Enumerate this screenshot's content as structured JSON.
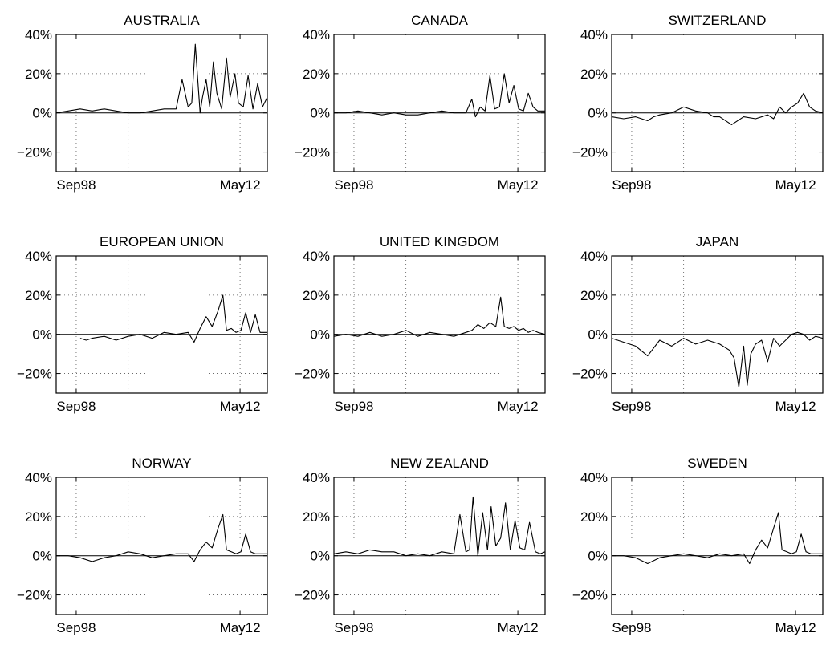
{
  "chart_data": {
    "type": "line",
    "layout": "3x3 small multiples",
    "x_tick_labels": [
      "Sep98",
      "May12"
    ],
    "y_tick_labels": [
      "40%",
      "20%",
      "0%",
      "−20%"
    ],
    "y_ticks": [
      40,
      20,
      0,
      -20
    ],
    "ylim": [
      -30,
      40
    ],
    "xlim": [
      1997.0,
      2014.6
    ],
    "x_tick_positions": [
      1998.67,
      2012.33
    ],
    "x_gridlines": [
      1998.67,
      2003.0,
      2012.33
    ],
    "grid": "dotted",
    "zero_line": true,
    "line_color": "#000000",
    "panels": [
      {
        "title": "AUSTRALIA",
        "x": [
          1997.0,
          1998.0,
          1999.0,
          2000.0,
          2001.0,
          2002.0,
          2003.0,
          2004.0,
          2005.0,
          2006.0,
          2007.0,
          2007.5,
          2008.0,
          2008.3,
          2008.6,
          2009.0,
          2009.2,
          2009.5,
          2009.8,
          2010.1,
          2010.4,
          2010.8,
          2011.2,
          2011.5,
          2011.9,
          2012.2,
          2012.6,
          2013.0,
          2013.4,
          2013.8,
          2014.2,
          2014.6
        ],
        "values": [
          0,
          1,
          2,
          1,
          2,
          1,
          0,
          0,
          1,
          2,
          2,
          17,
          3,
          5,
          35,
          0,
          8,
          17,
          3,
          26,
          10,
          2,
          28,
          8,
          20,
          5,
          3,
          19,
          2,
          15,
          3,
          8
        ]
      },
      {
        "title": "CANADA",
        "x": [
          1997.0,
          1998.0,
          1999.0,
          2000.0,
          2001.0,
          2002.0,
          2003.0,
          2004.0,
          2005.0,
          2006.0,
          2007.0,
          2008.0,
          2008.5,
          2008.8,
          2009.2,
          2009.6,
          2010.0,
          2010.4,
          2010.8,
          2011.2,
          2011.6,
          2012.0,
          2012.4,
          2012.8,
          2013.2,
          2013.6,
          2014.0,
          2014.6
        ],
        "values": [
          0,
          0,
          1,
          0,
          -1,
          0,
          -1,
          -1,
          0,
          1,
          0,
          0,
          7,
          -2,
          3,
          1,
          19,
          2,
          3,
          20,
          5,
          14,
          2,
          1,
          10,
          3,
          1,
          1
        ]
      },
      {
        "title": "SWITZERLAND",
        "x": [
          1997.0,
          1998.0,
          1999.0,
          2000.0,
          2000.5,
          2001.0,
          2002.0,
          2003.0,
          2004.0,
          2005.0,
          2005.5,
          2006.0,
          2007.0,
          2008.0,
          2009.0,
          2010.0,
          2010.5,
          2011.0,
          2011.5,
          2012.0,
          2012.5,
          2013.0,
          2013.5,
          2014.0,
          2014.6
        ],
        "values": [
          -2,
          -3,
          -2,
          -4,
          -2,
          -1,
          0,
          3,
          1,
          0,
          -2,
          -2,
          -6,
          -2,
          -3,
          -1,
          -3,
          3,
          0,
          3,
          5,
          10,
          3,
          1,
          0
        ]
      },
      {
        "title": "EUROPEAN UNION",
        "x": [
          1999.0,
          1999.5,
          2000.0,
          2001.0,
          2002.0,
          2003.0,
          2004.0,
          2005.0,
          2006.0,
          2007.0,
          2008.0,
          2008.5,
          2009.0,
          2009.5,
          2010.0,
          2010.5,
          2010.9,
          2011.2,
          2011.6,
          2012.0,
          2012.4,
          2012.8,
          2013.2,
          2013.6,
          2014.0,
          2014.6
        ],
        "values": [
          -2,
          -3,
          -2,
          -1,
          -3,
          -1,
          0,
          -2,
          1,
          0,
          1,
          -4,
          3,
          9,
          4,
          12,
          20,
          2,
          3,
          1,
          2,
          11,
          1,
          10,
          1,
          1
        ]
      },
      {
        "title": "UNITED KINGDOM",
        "x": [
          1997.0,
          1998.0,
          1999.0,
          2000.0,
          2001.0,
          2002.0,
          2003.0,
          2004.0,
          2005.0,
          2006.0,
          2007.0,
          2008.0,
          2008.5,
          2009.0,
          2009.5,
          2010.0,
          2010.5,
          2010.9,
          2011.2,
          2011.6,
          2012.0,
          2012.4,
          2012.8,
          2013.2,
          2013.6,
          2014.0,
          2014.6
        ],
        "values": [
          -1,
          0,
          -1,
          1,
          -1,
          0,
          2,
          -1,
          1,
          0,
          -1,
          1,
          2,
          5,
          3,
          6,
          4,
          19,
          4,
          3,
          4,
          2,
          3,
          1,
          2,
          1,
          0
        ]
      },
      {
        "title": "JAPAN",
        "x": [
          1997.0,
          1998.0,
          1999.0,
          2000.0,
          2001.0,
          2002.0,
          2003.0,
          2004.0,
          2005.0,
          2006.0,
          2006.8,
          2007.2,
          2007.6,
          2008.0,
          2008.3,
          2008.6,
          2009.0,
          2009.5,
          2010.0,
          2010.5,
          2011.0,
          2011.5,
          2012.0,
          2012.5,
          2013.0,
          2013.5,
          2014.0,
          2014.6
        ],
        "values": [
          -2,
          -4,
          -6,
          -11,
          -3,
          -6,
          -2,
          -5,
          -3,
          -5,
          -8,
          -12,
          -27,
          -6,
          -26,
          -10,
          -5,
          -3,
          -14,
          -2,
          -6,
          -3,
          0,
          1,
          0,
          -3,
          -1,
          -2
        ]
      },
      {
        "title": "NORWAY",
        "x": [
          1997.0,
          1998.0,
          1999.0,
          2000.0,
          2001.0,
          2002.0,
          2003.0,
          2004.0,
          2005.0,
          2006.0,
          2007.0,
          2008.0,
          2008.5,
          2009.0,
          2009.5,
          2010.0,
          2010.5,
          2010.9,
          2011.2,
          2011.6,
          2012.0,
          2012.4,
          2012.8,
          2013.2,
          2013.6,
          2014.0,
          2014.6
        ],
        "values": [
          0,
          0,
          -1,
          -3,
          -1,
          0,
          2,
          1,
          -1,
          0,
          1,
          1,
          -3,
          3,
          7,
          4,
          14,
          21,
          3,
          2,
          1,
          2,
          11,
          2,
          1,
          1,
          1
        ]
      },
      {
        "title": "NEW ZEALAND",
        "x": [
          1997.0,
          1998.0,
          1999.0,
          2000.0,
          2001.0,
          2002.0,
          2003.0,
          2004.0,
          2005.0,
          2006.0,
          2007.0,
          2007.5,
          2008.0,
          2008.3,
          2008.6,
          2009.0,
          2009.4,
          2009.8,
          2010.1,
          2010.5,
          2010.9,
          2011.3,
          2011.7,
          2012.1,
          2012.5,
          2012.9,
          2013.3,
          2013.8,
          2014.2,
          2014.6
        ],
        "values": [
          1,
          2,
          1,
          3,
          2,
          2,
          0,
          1,
          0,
          2,
          1,
          21,
          2,
          3,
          30,
          0,
          22,
          3,
          25,
          5,
          9,
          27,
          3,
          18,
          4,
          3,
          17,
          2,
          1,
          2
        ]
      },
      {
        "title": "SWEDEN",
        "x": [
          1997.0,
          1998.0,
          1999.0,
          2000.0,
          2001.0,
          2002.0,
          2003.0,
          2004.0,
          2005.0,
          2006.0,
          2007.0,
          2008.0,
          2008.5,
          2009.0,
          2009.5,
          2010.0,
          2010.5,
          2010.9,
          2011.2,
          2011.6,
          2012.0,
          2012.4,
          2012.8,
          2013.2,
          2013.6,
          2014.0,
          2014.6
        ],
        "values": [
          0,
          0,
          -1,
          -4,
          -1,
          0,
          1,
          0,
          -1,
          1,
          0,
          1,
          -4,
          3,
          8,
          4,
          14,
          22,
          3,
          2,
          1,
          2,
          11,
          2,
          1,
          1,
          1
        ]
      }
    ]
  }
}
